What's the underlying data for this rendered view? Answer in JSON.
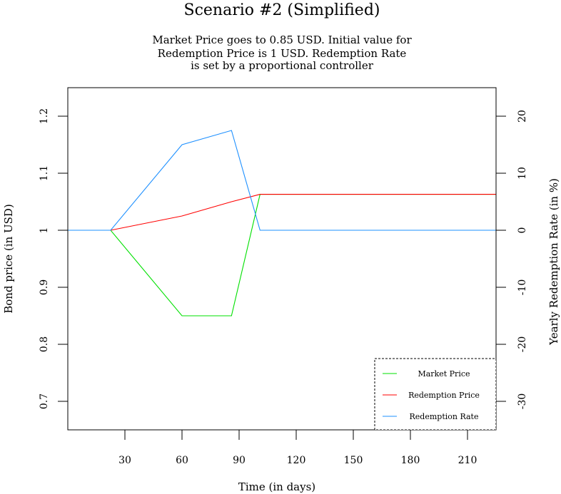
{
  "chart_data": {
    "type": "line",
    "title": "Scenario #2 (Simplified)",
    "subtitle": [
      "Market Price goes to 0.85 USD. Initial value for",
      "Redemption Price is 1 USD. Redemption Rate",
      "is set by a proportional controller"
    ],
    "xlabel": "Time (in days)",
    "ylabel": "Bond price (in USD)",
    "y2label": "Yearly Redemption Rate (in %)",
    "xlim": [
      0,
      225
    ],
    "ylim": [
      0.65,
      1.25
    ],
    "y2lim": [
      -35,
      25
    ],
    "x_ticks": [
      30,
      60,
      90,
      120,
      150,
      180,
      210
    ],
    "y_ticks": [
      0.7,
      0.8,
      0.9,
      1,
      1.1,
      1.2
    ],
    "y_tick_labels": [
      "0.7",
      "0.8",
      "0.9",
      "1",
      "1.1",
      "1.2"
    ],
    "y2_ticks": [
      -30,
      -20,
      -10,
      0,
      10,
      20
    ],
    "y2_tick_labels": [
      "-30",
      "-20",
      "-10",
      "0",
      "10",
      "20"
    ],
    "grid": false,
    "legend_position": "bottom-right",
    "series": [
      {
        "name": "Market Price",
        "color": "#00e000",
        "axis": "left",
        "x": [
          0,
          22.5,
          60,
          86,
          101,
          225
        ],
        "y": [
          1.0,
          1.0,
          0.85,
          0.85,
          1.063,
          1.063
        ]
      },
      {
        "name": "Redemption Price",
        "color": "#ff0000",
        "axis": "left",
        "x": [
          0,
          22.5,
          60,
          86,
          101,
          225
        ],
        "y": [
          1.0,
          1.0,
          1.025,
          1.05,
          1.063,
          1.063
        ]
      },
      {
        "name": "Redemption Rate",
        "color": "#1e90ff",
        "axis": "right",
        "x": [
          0,
          22.5,
          60,
          86,
          101,
          225
        ],
        "y": [
          0,
          0,
          15,
          17.5,
          0,
          0
        ]
      }
    ]
  }
}
